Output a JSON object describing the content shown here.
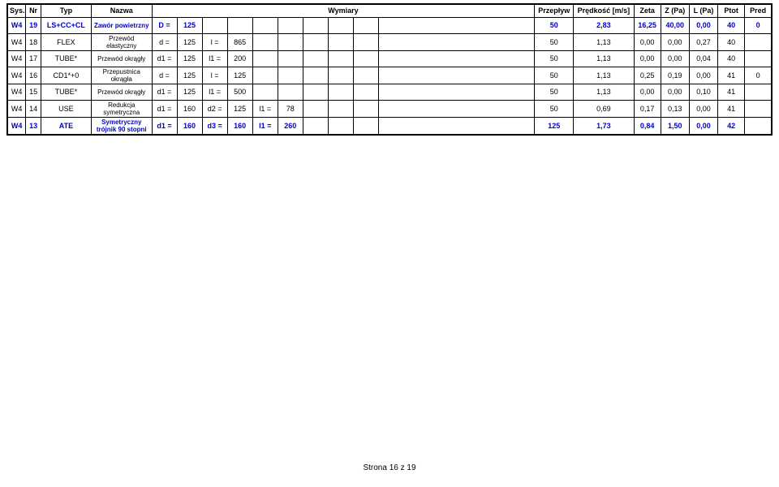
{
  "header": {
    "sys": "Sys.",
    "nr": "Nr",
    "typ": "Typ",
    "nazwa": "Nazwa",
    "wymiary": "Wymiary",
    "przeplyw": "Przepływ",
    "predkosc": "Prędkość [m/s]",
    "zeta": "Zeta",
    "zpa": "Z (Pa)",
    "lpa": "L (Pa)",
    "ptot": "Ptot",
    "pred": "Pred"
  },
  "rows": [
    {
      "bold_blue": true,
      "sys": "W4",
      "nr": "19",
      "typ": "LS+CC+CL",
      "nazwa": "Zawór powietrzny",
      "dim": [
        "D =",
        "125",
        "",
        "",
        "",
        "",
        "",
        "",
        ""
      ],
      "przeplyw": "50",
      "predkosc": "2,83",
      "zeta": "16,25",
      "zpa": "40,00",
      "lpa": "0,00",
      "ptot": "40",
      "pred": "0"
    },
    {
      "sys": "W4",
      "nr": "18",
      "typ": "FLEX",
      "nazwa": "Przewód elastyczny",
      "dim": [
        "d =",
        "125",
        "l =",
        "865",
        "",
        "",
        "",
        "",
        ""
      ],
      "przeplyw": "50",
      "predkosc": "1,13",
      "zeta": "0,00",
      "zpa": "0,00",
      "lpa": "0,27",
      "ptot": "40",
      "pred": ""
    },
    {
      "sys": "W4",
      "nr": "17",
      "typ": "TUBE*",
      "nazwa": "Przewód okrągły",
      "dim": [
        "d1 =",
        "125",
        "l1 =",
        "200",
        "",
        "",
        "",
        "",
        ""
      ],
      "przeplyw": "50",
      "predkosc": "1,13",
      "zeta": "0,00",
      "zpa": "0,00",
      "lpa": "0,04",
      "ptot": "40",
      "pred": ""
    },
    {
      "sys": "W4",
      "nr": "16",
      "typ": "CD1*+0",
      "nazwa": "Przepustnica okrągła",
      "dim": [
        "d =",
        "125",
        "l =",
        "125",
        "",
        "",
        "",
        "",
        ""
      ],
      "przeplyw": "50",
      "predkosc": "1,13",
      "zeta": "0,25",
      "zpa": "0,19",
      "lpa": "0,00",
      "ptot": "41",
      "pred": "0"
    },
    {
      "sys": "W4",
      "nr": "15",
      "typ": "TUBE*",
      "nazwa": "Przewód okrągły",
      "dim": [
        "d1 =",
        "125",
        "l1 =",
        "500",
        "",
        "",
        "",
        "",
        ""
      ],
      "przeplyw": "50",
      "predkosc": "1,13",
      "zeta": "0,00",
      "zpa": "0,00",
      "lpa": "0,10",
      "ptot": "41",
      "pred": ""
    },
    {
      "sys": "W4",
      "nr": "14",
      "typ": "USE",
      "nazwa": "Redukcja symetryczna",
      "dim": [
        "d1 =",
        "160",
        "d2 =",
        "125",
        "l1 =",
        "78",
        "",
        "",
        ""
      ],
      "przeplyw": "50",
      "predkosc": "0,69",
      "zeta": "0,17",
      "zpa": "0,13",
      "lpa": "0,00",
      "ptot": "41",
      "pred": ""
    },
    {
      "bold_blue": true,
      "sys": "W4",
      "nr": "13",
      "typ": "ATE",
      "nazwa": "Symetryczny trójnik 90 stopni",
      "dim": [
        "d1 =",
        "160",
        "d3 =",
        "160",
        "l1 =",
        "260",
        "",
        "",
        ""
      ],
      "przeplyw": "125",
      "predkosc": "1,73",
      "zeta": "0,84",
      "zpa": "1,50",
      "lpa": "0,00",
      "ptot": "42",
      "pred": ""
    }
  ],
  "footer": "Strona 16 z 19",
  "colwidths": {
    "sys": 22,
    "nr": 18,
    "typ": 60,
    "nazwa": 72,
    "dim": [
      30,
      30,
      30,
      30,
      30,
      30,
      30,
      30,
      30
    ],
    "wymiary_extra": 186,
    "przeplyw": 46,
    "predkosc": 72,
    "zeta": 32,
    "zpa": 34,
    "lpa": 34,
    "ptot": 32,
    "pred": 32
  }
}
